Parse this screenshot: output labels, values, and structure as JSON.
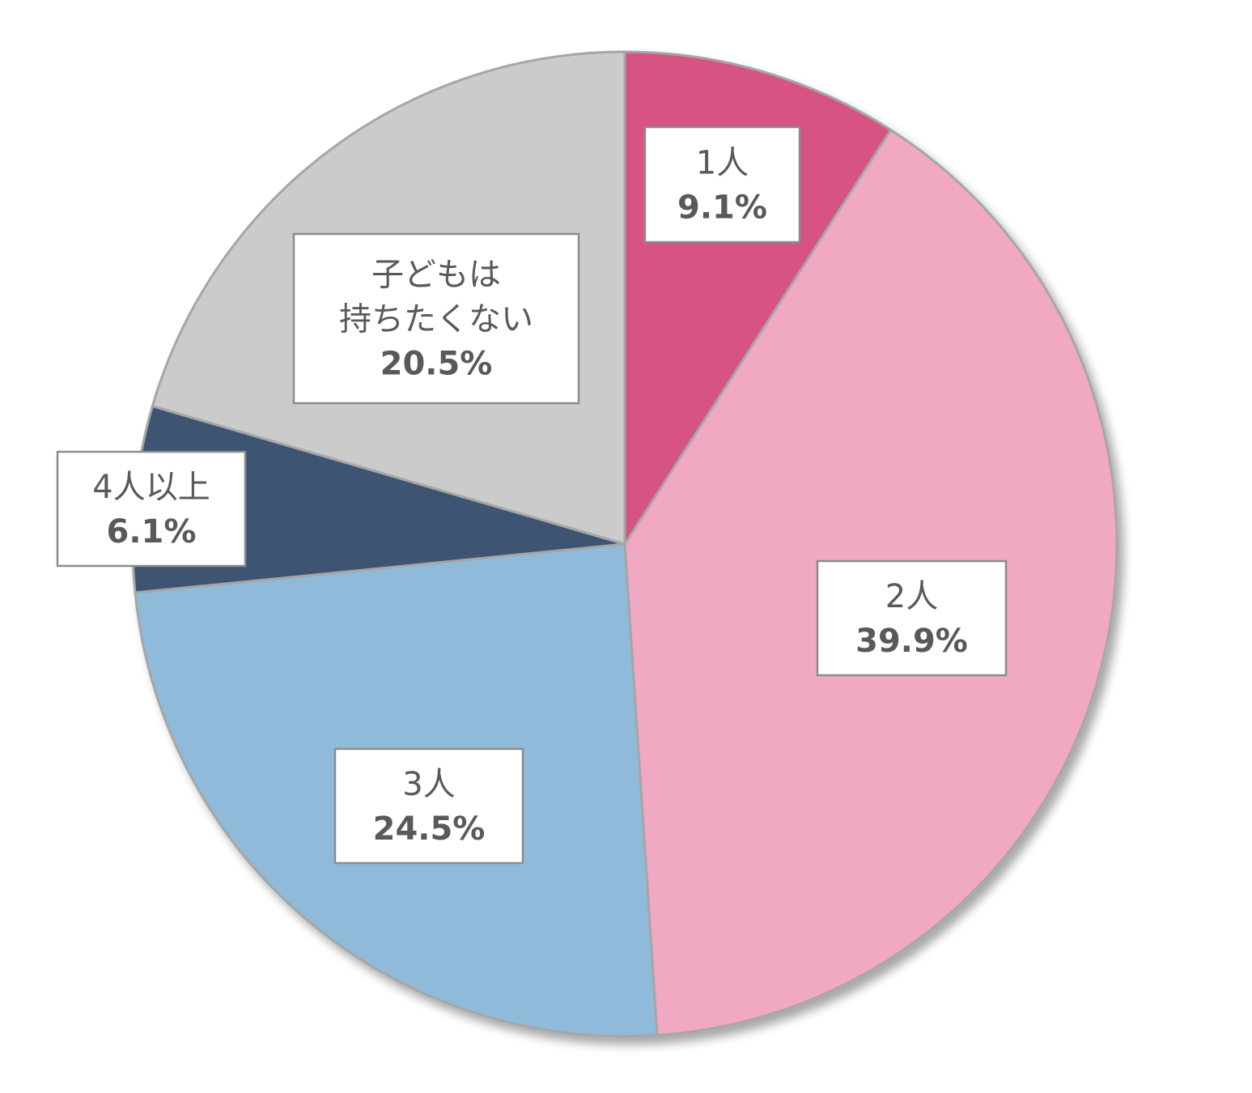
{
  "chart_data": {
    "type": "pie",
    "title": "",
    "slices": [
      {
        "lines": [
          "1人"
        ],
        "value": 9.1,
        "value_label": "9.1%",
        "color": "#d75384"
      },
      {
        "lines": [
          "2人"
        ],
        "value": 39.9,
        "value_label": "39.9%",
        "color": "#f1a8c2"
      },
      {
        "lines": [
          "3人"
        ],
        "value": 24.5,
        "value_label": "24.5%",
        "color": "#90bad9"
      },
      {
        "lines": [
          "4人以上"
        ],
        "value": 6.1,
        "value_label": "6.1%",
        "color": "#3d5473"
      },
      {
        "lines": [
          "子どもは",
          "持ちたくない"
        ],
        "value": 20.5,
        "value_label": "20.5%",
        "color": "#cbcbcb"
      }
    ],
    "start": "12 o'clock",
    "direction": "clockwise",
    "legend": "none",
    "label_style": "boxed data labels"
  }
}
